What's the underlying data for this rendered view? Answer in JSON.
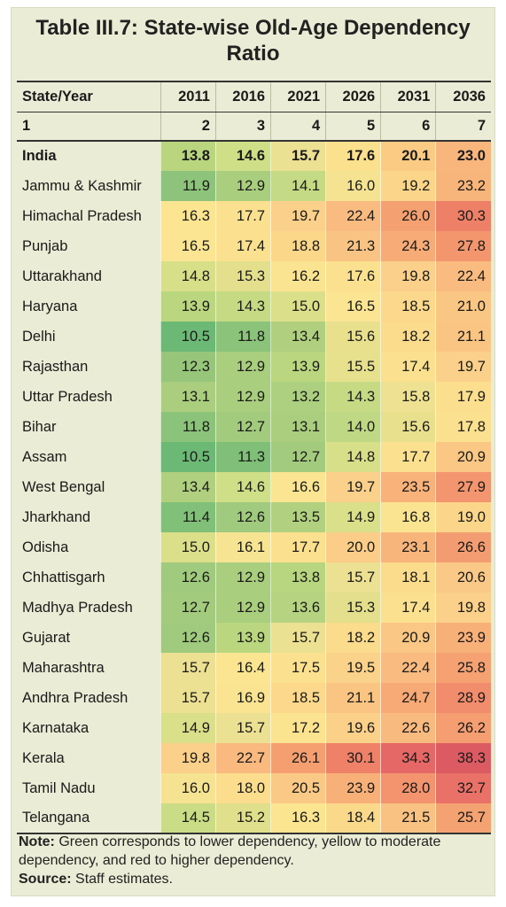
{
  "title": "Table III.7: State-wise Old-Age Dependency Ratio",
  "header": {
    "state_label": "State/Year",
    "years": [
      "2011",
      "2016",
      "2021",
      "2026",
      "2031",
      "2036"
    ],
    "col_numbers": [
      "1",
      "2",
      "3",
      "4",
      "5",
      "6",
      "7"
    ]
  },
  "rows": [
    {
      "state": "India",
      "values": [
        "13.8",
        "14.6",
        "15.7",
        "17.6",
        "20.1",
        "23.0"
      ],
      "colors": [
        "#b9d67f",
        "#cfdf87",
        "#ece092",
        "#fbe18d",
        "#fbcb84",
        "#f8b67c"
      ]
    },
    {
      "state": "Jammu & Kashmir",
      "values": [
        "11.9",
        "12.9",
        "14.1",
        "16.0",
        "19.2",
        "23.2"
      ],
      "colors": [
        "#8dc37a",
        "#a9ce7e",
        "#c4da84",
        "#f5e392",
        "#fbd589",
        "#f8b57b"
      ]
    },
    {
      "state": "Himachal Pradesh",
      "values": [
        "16.3",
        "17.7",
        "19.7",
        "22.4",
        "26.0",
        "30.3"
      ],
      "colors": [
        "#fbe591",
        "#fbe18f",
        "#fbd08a",
        "#f9bb80",
        "#f5a070",
        "#ee8068"
      ]
    },
    {
      "state": "Punjab",
      "values": [
        "16.5",
        "17.4",
        "18.8",
        "21.3",
        "24.3",
        "27.8"
      ],
      "colors": [
        "#fbe592",
        "#fbe18f",
        "#fbd78a",
        "#f9c483",
        "#f7ab77",
        "#f3966e"
      ]
    },
    {
      "state": "Uttarakhand",
      "values": [
        "14.8",
        "15.3",
        "16.2",
        "17.6",
        "19.8",
        "22.4"
      ],
      "colors": [
        "#d8df89",
        "#e3df8c",
        "#fae491",
        "#fbe18f",
        "#fbd08a",
        "#f9bb80"
      ]
    },
    {
      "state": "Haryana",
      "values": [
        "13.9",
        "14.3",
        "15.0",
        "16.5",
        "18.5",
        "21.0"
      ],
      "colors": [
        "#bad67f",
        "#c6da84",
        "#dcdf8a",
        "#fbe592",
        "#fbd88b",
        "#fac683"
      ]
    },
    {
      "state": "Delhi",
      "values": [
        "10.5",
        "11.8",
        "13.4",
        "15.6",
        "18.2",
        "21.1"
      ],
      "colors": [
        "#6cb975",
        "#8bc37a",
        "#b0d07f",
        "#e9e08e",
        "#fbdb8c",
        "#fac583"
      ]
    },
    {
      "state": "Rajasthan",
      "values": [
        "12.3",
        "12.9",
        "13.9",
        "15.5",
        "17.4",
        "19.7"
      ],
      "colors": [
        "#97c67b",
        "#a9ce7e",
        "#bad67f",
        "#e7e08d",
        "#fbe18f",
        "#fbd08a"
      ]
    },
    {
      "state": "Uttar Pradesh",
      "values": [
        "13.1",
        "12.9",
        "13.2",
        "14.3",
        "15.8",
        "17.9"
      ],
      "colors": [
        "#aace7e",
        "#a9ce7e",
        "#acd07f",
        "#c6da84",
        "#eee191",
        "#fbdf8e"
      ]
    },
    {
      "state": "Bihar",
      "values": [
        "11.8",
        "12.7",
        "13.1",
        "14.0",
        "15.6",
        "17.8"
      ],
      "colors": [
        "#8bc37a",
        "#a3cb7d",
        "#aace7e",
        "#bfd883",
        "#e9e08e",
        "#fbe08f"
      ]
    },
    {
      "state": "Assam",
      "values": [
        "10.5",
        "11.3",
        "12.7",
        "14.8",
        "17.7",
        "20.9"
      ],
      "colors": [
        "#6cb975",
        "#7fbf78",
        "#a3cb7d",
        "#d8df89",
        "#fbe18f",
        "#fac784"
      ]
    },
    {
      "state": "West Bengal",
      "values": [
        "13.4",
        "14.6",
        "16.6",
        "19.7",
        "23.5",
        "27.9"
      ],
      "colors": [
        "#b0d07f",
        "#cfdf87",
        "#fbe592",
        "#fbd08a",
        "#f8b27a",
        "#f3956e"
      ]
    },
    {
      "state": "Jharkhand",
      "values": [
        "11.4",
        "12.6",
        "13.5",
        "14.9",
        "16.8",
        "19.0"
      ],
      "colors": [
        "#81c078",
        "#a0ca7d",
        "#b2d180",
        "#dadf8a",
        "#fbe491",
        "#fbd68a"
      ]
    },
    {
      "state": "Odisha",
      "values": [
        "15.0",
        "16.1",
        "17.7",
        "20.0",
        "23.1",
        "26.6"
      ],
      "colors": [
        "#dcdf8a",
        "#f6e492",
        "#fbe18f",
        "#fbcd88",
        "#f8b57b",
        "#f49c71"
      ]
    },
    {
      "state": "Chhattisgarh",
      "values": [
        "12.6",
        "12.9",
        "13.8",
        "15.7",
        "18.1",
        "20.6"
      ],
      "colors": [
        "#a0ca7d",
        "#a9ce7e",
        "#b8d57f",
        "#ece092",
        "#fbdc8c",
        "#fac987"
      ]
    },
    {
      "state": "Madhya Pradesh",
      "values": [
        "12.7",
        "12.9",
        "13.6",
        "15.3",
        "17.4",
        "19.8"
      ],
      "colors": [
        "#a3cb7d",
        "#a9ce7e",
        "#b5d380",
        "#e3df8c",
        "#fbe18f",
        "#fbd08a"
      ]
    },
    {
      "state": "Gujarat",
      "values": [
        "12.6",
        "13.9",
        "15.7",
        "18.2",
        "20.9",
        "23.9"
      ],
      "colors": [
        "#a0ca7d",
        "#bad67f",
        "#ece092",
        "#fbdb8c",
        "#fac784",
        "#f8b079"
      ]
    },
    {
      "state": "Maharashtra",
      "values": [
        "15.7",
        "16.4",
        "17.5",
        "19.5",
        "22.4",
        "25.8"
      ],
      "colors": [
        "#ece092",
        "#fbe591",
        "#fbe18f",
        "#fbd28a",
        "#f9bb80",
        "#f5a172"
      ]
    },
    {
      "state": "Andhra Pradesh",
      "values": [
        "15.7",
        "16.9",
        "18.5",
        "21.1",
        "24.7",
        "28.9"
      ],
      "colors": [
        "#ece092",
        "#fbe491",
        "#fbd88b",
        "#fac583",
        "#f7a976",
        "#f18c6c"
      ]
    },
    {
      "state": "Karnataka",
      "values": [
        "14.9",
        "15.7",
        "17.2",
        "19.6",
        "22.6",
        "26.2"
      ],
      "colors": [
        "#dadf8a",
        "#ece092",
        "#fbe390",
        "#fbd18a",
        "#f9ba7f",
        "#f59e71"
      ]
    },
    {
      "state": "Kerala",
      "values": [
        "19.8",
        "22.7",
        "26.1",
        "30.1",
        "34.3",
        "38.3"
      ],
      "colors": [
        "#fbd08a",
        "#f9b97f",
        "#f59f71",
        "#ee8168",
        "#e56866",
        "#dc5b62"
      ]
    },
    {
      "state": "Tamil Nadu",
      "values": [
        "16.0",
        "18.0",
        "20.5",
        "23.9",
        "28.0",
        "32.7"
      ],
      "colors": [
        "#f5e392",
        "#fbdd8d",
        "#fac986",
        "#f8b079",
        "#f3946e",
        "#e97167"
      ]
    },
    {
      "state": "Telangana",
      "values": [
        "14.5",
        "15.2",
        "16.3",
        "18.4",
        "21.5",
        "25.7"
      ],
      "colors": [
        "#cbdc86",
        "#e0df8b",
        "#fbe591",
        "#fbd98b",
        "#f9c282",
        "#f5a272"
      ]
    }
  ],
  "note": {
    "note_label": "Note:",
    "note_text": " Green corresponds to lower dependency, yellow to moderate dependency, and red to higher dependency.",
    "source_label": "Source:",
    "source_text": " Staff estimates."
  }
}
